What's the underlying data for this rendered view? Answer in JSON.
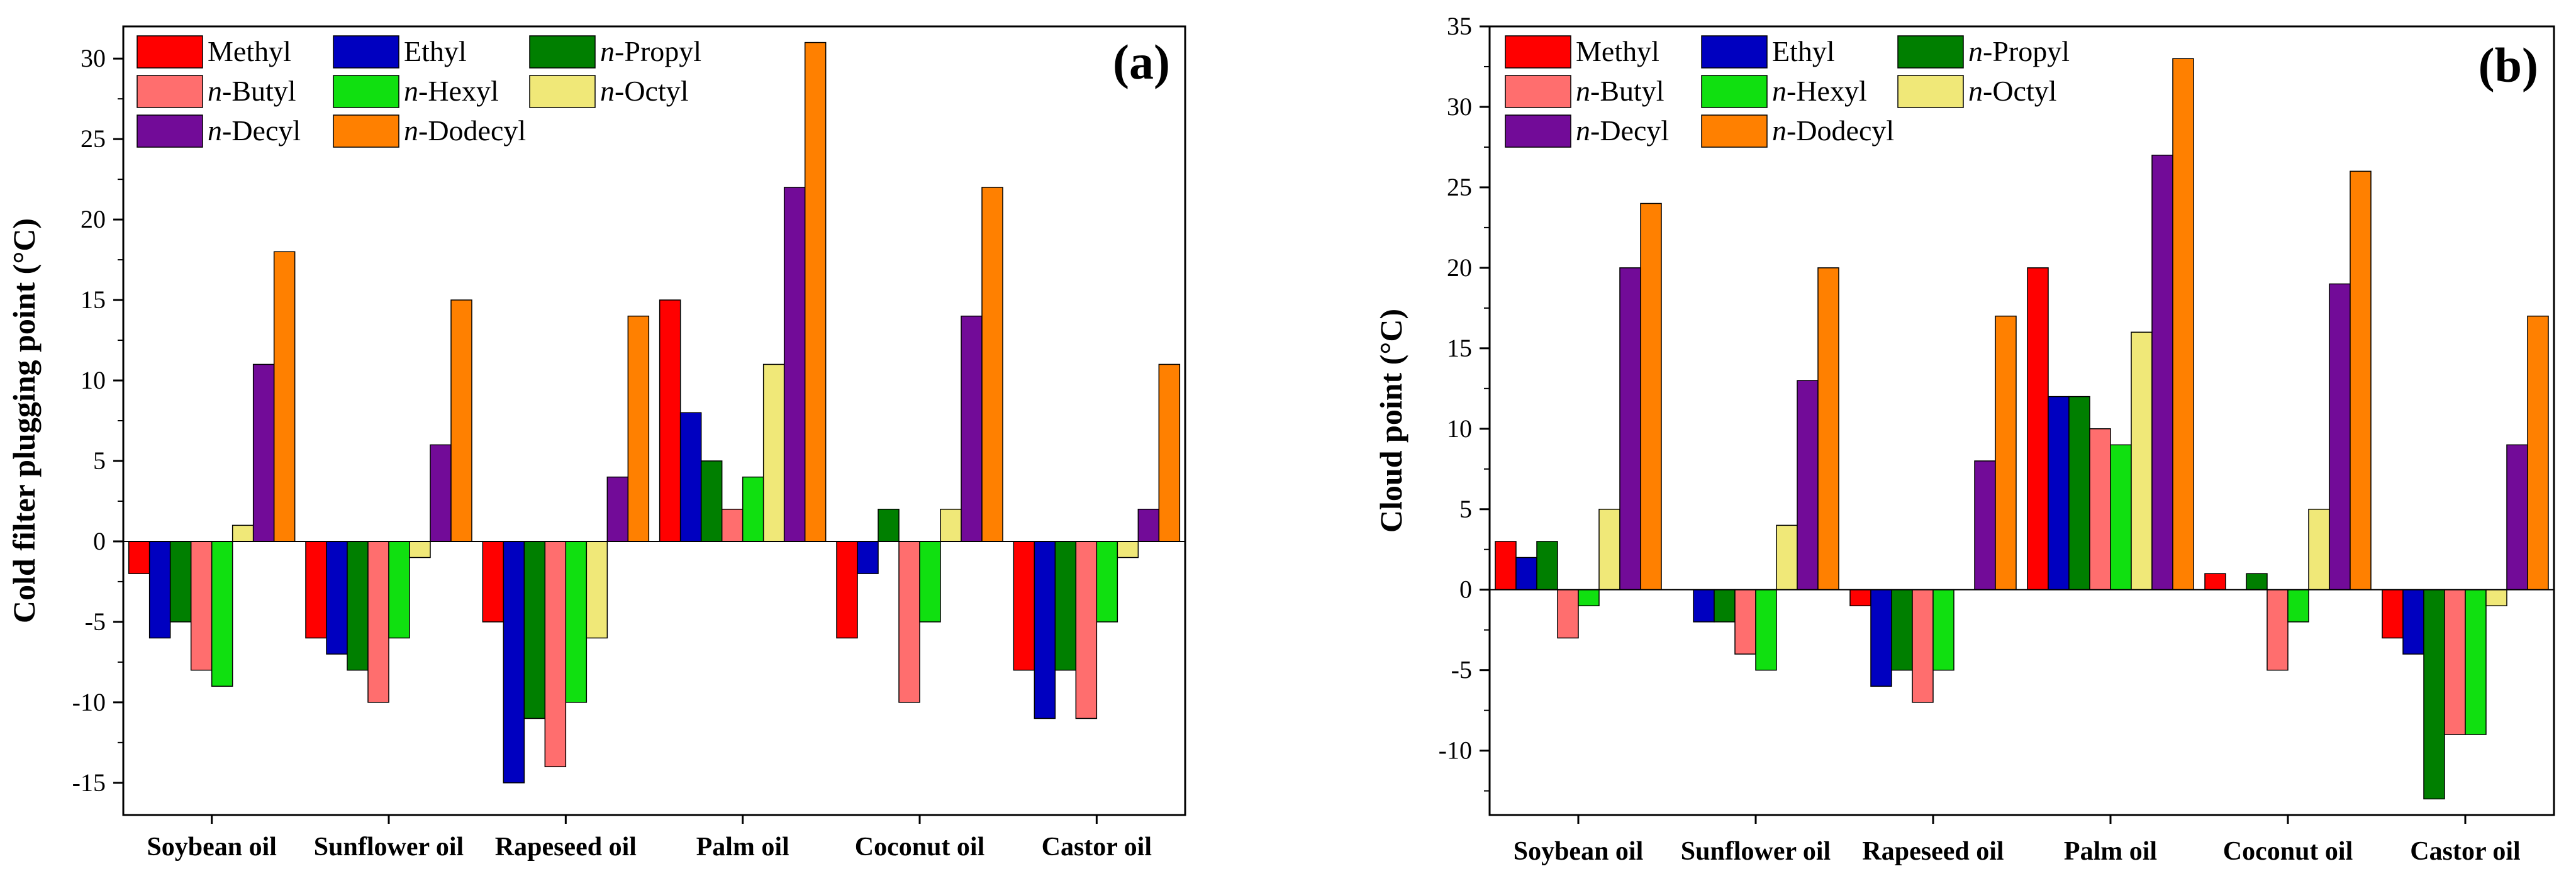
{
  "chart_data": [
    {
      "type": "bar",
      "panel_label": "(a)",
      "title": "",
      "xlabel": "",
      "ylabel": "Cold filter plugging point (°C)",
      "ylim": [
        -17,
        32
      ],
      "yticks": [
        -15,
        -10,
        -5,
        0,
        5,
        10,
        15,
        20,
        25,
        30
      ],
      "grid": false,
      "legend_position": "top-left",
      "categories": [
        "Soybean oil",
        "Sunflower oil",
        "Rapeseed oil",
        "Palm oil",
        "Coconut oil",
        "Castor oil"
      ],
      "series": [
        {
          "name": "Methyl",
          "prefix": "",
          "base": "Methyl",
          "color": "#ff0000",
          "values": [
            -2,
            -6,
            -5,
            15,
            -6,
            -8
          ]
        },
        {
          "name": "Ethyl",
          "prefix": "",
          "base": "Ethyl",
          "color": "#0000c0",
          "values": [
            -6,
            -7,
            -15,
            8,
            -2,
            -11
          ]
        },
        {
          "name": "n-Propyl",
          "prefix": "n",
          "base": "-Propyl",
          "color": "#007f00",
          "values": [
            -5,
            -8,
            -11,
            5,
            2,
            -8
          ]
        },
        {
          "name": "n-Butyl",
          "prefix": "n",
          "base": "-Butyl",
          "color": "#ff6e6e",
          "values": [
            -8,
            -10,
            -14,
            2,
            -10,
            -11
          ]
        },
        {
          "name": "n-Hexyl",
          "prefix": "n",
          "base": "-Hexyl",
          "color": "#10e010",
          "values": [
            -9,
            -6,
            -10,
            4,
            -5,
            -5
          ]
        },
        {
          "name": "n-Octyl",
          "prefix": "n",
          "base": "-Octyl",
          "color": "#f0e878",
          "values": [
            1,
            -1,
            -6,
            11,
            2,
            -1
          ]
        },
        {
          "name": "n-Decyl",
          "prefix": "n",
          "base": "-Decyl",
          "color": "#720b98",
          "values": [
            11,
            6,
            4,
            22,
            14,
            2
          ]
        },
        {
          "name": "n-Dodecyl",
          "prefix": "n",
          "base": "-Dodecyl",
          "color": "#ff8000",
          "values": [
            18,
            15,
            14,
            31,
            22,
            11
          ]
        }
      ]
    },
    {
      "type": "bar",
      "panel_label": "(b)",
      "title": "",
      "xlabel": "",
      "ylabel": "Cloud point (°C)",
      "ylim": [
        -14,
        35
      ],
      "yticks": [
        -10,
        -5,
        0,
        5,
        10,
        15,
        20,
        25,
        30,
        35
      ],
      "grid": false,
      "legend_position": "top-left",
      "categories": [
        "Soybean oil",
        "Sunflower oil",
        "Rapeseed oil",
        "Palm oil",
        "Coconut oil",
        "Castor oil"
      ],
      "series": [
        {
          "name": "Methyl",
          "prefix": "",
          "base": "Methyl",
          "color": "#ff0000",
          "values": [
            3,
            0,
            -1,
            20,
            1,
            -3
          ]
        },
        {
          "name": "Ethyl",
          "prefix": "",
          "base": "Ethyl",
          "color": "#0000c0",
          "values": [
            2,
            -2,
            -6,
            12,
            0,
            -4
          ]
        },
        {
          "name": "n-Propyl",
          "prefix": "n",
          "base": "-Propyl",
          "color": "#007f00",
          "values": [
            3,
            -2,
            -5,
            12,
            1,
            -13
          ]
        },
        {
          "name": "n-Butyl",
          "prefix": "n",
          "base": "-Butyl",
          "color": "#ff6e6e",
          "values": [
            -3,
            -4,
            -7,
            10,
            -5,
            -9
          ]
        },
        {
          "name": "n-Hexyl",
          "prefix": "n",
          "base": "-Hexyl",
          "color": "#10e010",
          "values": [
            -1,
            -5,
            -5,
            9,
            -2,
            -9
          ]
        },
        {
          "name": "n-Octyl",
          "prefix": "n",
          "base": "-Octyl",
          "color": "#f0e878",
          "values": [
            5,
            4,
            0,
            16,
            5,
            -1
          ]
        },
        {
          "name": "n-Decyl",
          "prefix": "n",
          "base": "-Decyl",
          "color": "#720b98",
          "values": [
            20,
            13,
            8,
            27,
            19,
            9
          ]
        },
        {
          "name": "n-Dodecyl",
          "prefix": "n",
          "base": "-Dodecyl",
          "color": "#ff8000",
          "values": [
            24,
            20,
            17,
            33,
            26,
            17
          ]
        }
      ]
    }
  ]
}
